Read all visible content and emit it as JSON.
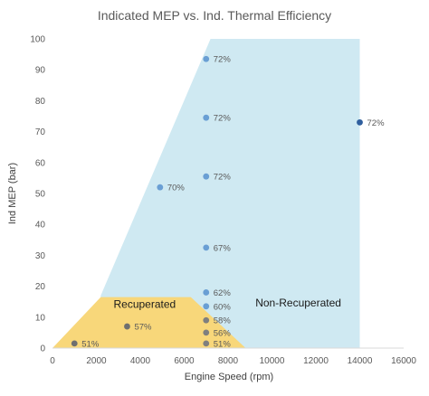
{
  "chart_data": {
    "type": "scatter",
    "title": "Indicated MEP vs. Ind. Thermal Efficiency",
    "xlabel": "Engine Speed (rpm)",
    "ylabel": "Ind MEP (bar)",
    "xlim": [
      0,
      16000
    ],
    "ylim": [
      0,
      100
    ],
    "x_ticks": [
      0,
      2000,
      4000,
      6000,
      8000,
      10000,
      12000,
      14000,
      16000
    ],
    "y_ticks": [
      0,
      10,
      20,
      30,
      40,
      50,
      60,
      70,
      80,
      90,
      100
    ],
    "grid": false,
    "regions": [
      {
        "name": "Non-Recuperated",
        "label": "Non-Recuperated",
        "color": "#cfe9f2",
        "polygon": [
          [
            2100,
            0
          ],
          [
            2200,
            17
          ],
          [
            7200,
            100
          ],
          [
            14000,
            100
          ],
          [
            14000,
            0
          ]
        ]
      },
      {
        "name": "Recuperated",
        "label": "Recuperated",
        "color": "#f8d77a",
        "polygon": [
          [
            0,
            0
          ],
          [
            2200,
            16.5
          ],
          [
            6300,
            16.5
          ],
          [
            8800,
            0
          ]
        ]
      }
    ],
    "points": [
      {
        "x": 1000,
        "y": 1.5,
        "label": "51%",
        "color": "#6f6f6f"
      },
      {
        "x": 3400,
        "y": 7,
        "label": "57%",
        "color": "#6f6f6f"
      },
      {
        "x": 4900,
        "y": 52,
        "label": "70%",
        "color": "#6a9fd4"
      },
      {
        "x": 7000,
        "y": 93.5,
        "label": "72%",
        "color": "#6a9fd4"
      },
      {
        "x": 7000,
        "y": 74.5,
        "label": "72%",
        "color": "#6a9fd4"
      },
      {
        "x": 7000,
        "y": 55.5,
        "label": "72%",
        "color": "#6a9fd4"
      },
      {
        "x": 7000,
        "y": 32.5,
        "label": "67%",
        "color": "#6a9fd4"
      },
      {
        "x": 7000,
        "y": 18,
        "label": "62%",
        "color": "#6a9fd4"
      },
      {
        "x": 7000,
        "y": 13.5,
        "label": "60%",
        "color": "#6a9fd4"
      },
      {
        "x": 7000,
        "y": 9,
        "label": "58%",
        "color": "#7f7f7f"
      },
      {
        "x": 7000,
        "y": 5,
        "label": "56%",
        "color": "#7f7f7f"
      },
      {
        "x": 7000,
        "y": 1.5,
        "label": "51%",
        "color": "#7f7f7f"
      },
      {
        "x": 14000,
        "y": 73,
        "label": "72%",
        "color": "#2f5f9e"
      }
    ]
  }
}
